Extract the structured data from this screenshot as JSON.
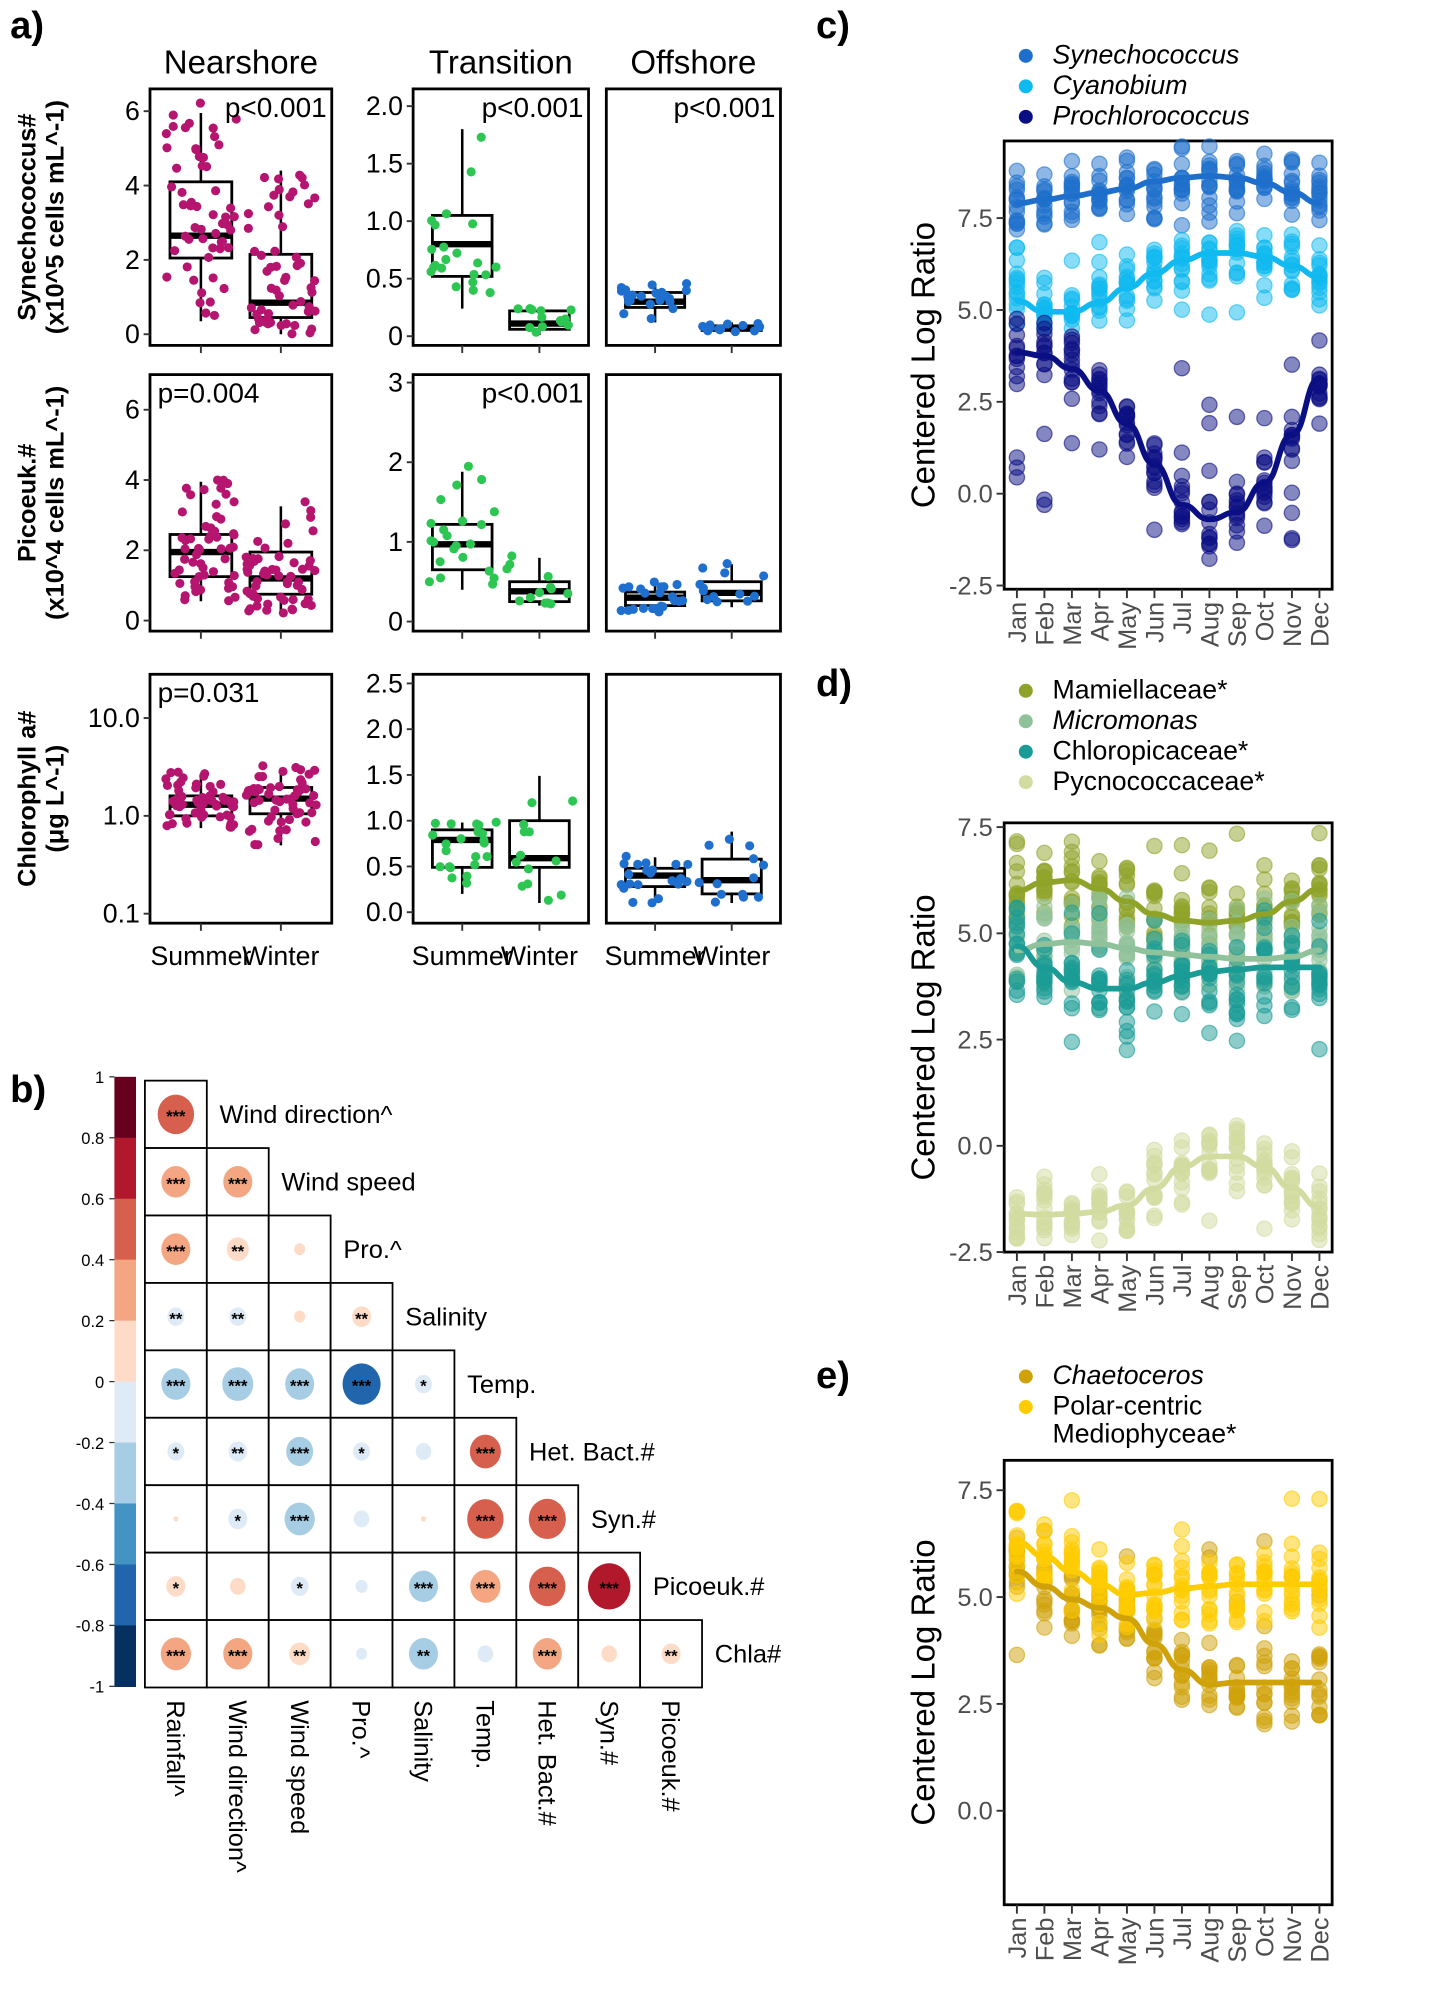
{
  "figure": {
    "panel_labels": [
      "a)",
      "b)",
      "c)",
      "d)",
      "e)"
    ]
  },
  "chart_data": [
    {
      "id": "a",
      "type": "box",
      "facets": [
        "Nearshore",
        "Transition",
        "Offshore"
      ],
      "categories": [
        "Summer",
        "Winter"
      ],
      "colors": {
        "Nearshore": "#b5146f",
        "Transition": "#2dc653",
        "Offshore": "#1f6fcf"
      },
      "rows": [
        {
          "ylabel_main": "Synechococcus#",
          "ylabel_unit": "(x10^5 cells mL^-1)",
          "panels": [
            {
              "facet": "Nearshore",
              "ylim": [
                -0.3,
                6.6
              ],
              "ticks": [
                0,
                2,
                4,
                6
              ],
              "tick_labels": [
                "0",
                "2",
                "4",
                "6"
              ],
              "pvalue": "p<0.001",
              "p_pos": "top-right",
              "boxes": [
                {
                  "q1": 2.05,
                  "median": 2.65,
                  "q3": 4.1,
                  "lo": 0.35,
                  "hi": 5.95
                },
                {
                  "q1": 0.45,
                  "median": 0.85,
                  "q3": 2.15,
                  "lo": 0.0,
                  "hi": 4.4
                }
              ]
            },
            {
              "facet": "Transition",
              "ylim": [
                -0.08,
                2.15
              ],
              "ticks": [
                0,
                0.5,
                1.0,
                1.5,
                2.0
              ],
              "tick_labels": [
                "0",
                "0.5",
                "1.0",
                "1.5",
                "2.0"
              ],
              "pvalue": "p<0.001",
              "p_pos": "top-right",
              "boxes": [
                {
                  "q1": 0.52,
                  "median": 0.8,
                  "q3": 1.05,
                  "lo": 0.24,
                  "hi": 1.8
                },
                {
                  "q1": 0.06,
                  "median": 0.11,
                  "q3": 0.22,
                  "lo": 0.01,
                  "hi": 0.24
                }
              ]
            },
            {
              "facet": "Offshore",
              "ylim": [
                -0.08,
                2.15
              ],
              "ticks": [],
              "tick_labels": [],
              "pvalue": "p<0.001",
              "p_pos": "top-right",
              "boxes": [
                {
                  "q1": 0.25,
                  "median": 0.3,
                  "q3": 0.38,
                  "lo": 0.12,
                  "hi": 0.45
                },
                {
                  "q1": 0.05,
                  "median": 0.07,
                  "q3": 0.09,
                  "lo": 0.03,
                  "hi": 0.12
                }
              ]
            }
          ]
        },
        {
          "ylabel_main": "Picoeuk.#",
          "ylabel_unit": "(x10^4 cells mL^-1)",
          "panels": [
            {
              "facet": "Nearshore",
              "ylim": [
                -0.3,
                7.0
              ],
              "ticks": [
                0,
                2,
                4,
                6
              ],
              "tick_labels": [
                "0",
                "2",
                "4",
                "6"
              ],
              "pvalue": "p=0.004",
              "p_pos": "top-left",
              "boxes": [
                {
                  "q1": 1.25,
                  "median": 1.95,
                  "q3": 2.45,
                  "lo": 0.55,
                  "hi": 3.95
                },
                {
                  "q1": 0.75,
                  "median": 1.2,
                  "q3": 1.95,
                  "lo": 0.2,
                  "hi": 3.25
                }
              ]
            },
            {
              "facet": "Transition",
              "ylim": [
                -0.12,
                3.1
              ],
              "ticks": [
                0,
                1,
                2,
                3
              ],
              "tick_labels": [
                "0",
                "1",
                "2",
                "3"
              ],
              "pvalue": "p<0.001",
              "p_pos": "top-right",
              "boxes": [
                {
                  "q1": 0.65,
                  "median": 0.97,
                  "q3": 1.22,
                  "lo": 0.4,
                  "hi": 1.88
                },
                {
                  "q1": 0.25,
                  "median": 0.38,
                  "q3": 0.5,
                  "lo": 0.2,
                  "hi": 0.8
                }
              ]
            },
            {
              "facet": "Offshore",
              "ylim": [
                -0.12,
                3.1
              ],
              "ticks": [],
              "tick_labels": [],
              "pvalue": "",
              "p_pos": "top-right",
              "boxes": [
                {
                  "q1": 0.2,
                  "median": 0.3,
                  "q3": 0.37,
                  "lo": 0.12,
                  "hi": 0.5
                },
                {
                  "q1": 0.26,
                  "median": 0.36,
                  "q3": 0.5,
                  "lo": 0.18,
                  "hi": 0.72
                }
              ]
            }
          ]
        },
        {
          "ylabel_main": "Chlorophyll a#",
          "ylabel_unit": "(μg L^-1)",
          "panels": [
            {
              "facet": "Nearshore",
              "scale": "log10",
              "ylim": [
                0.08,
                28
              ],
              "ticks": [
                0.1,
                1.0,
                10.0
              ],
              "tick_labels": [
                "0.1",
                "1.0",
                "10.0"
              ],
              "pvalue": "p=0.031",
              "p_pos": "top-left",
              "boxes": [
                {
                  "q1": 1.0,
                  "median": 1.3,
                  "q3": 1.6,
                  "lo": 0.75,
                  "hi": 2.7
                },
                {
                  "q1": 1.05,
                  "median": 1.5,
                  "q3": 1.95,
                  "lo": 0.5,
                  "hi": 3.1
                }
              ]
            },
            {
              "facet": "Transition",
              "ylim": [
                -0.12,
                2.6
              ],
              "ticks": [
                0,
                0.5,
                1.0,
                1.5,
                2.0,
                2.5
              ],
              "tick_labels": [
                "0.0",
                "0.5",
                "1.0",
                "1.5",
                "2.0",
                "2.5"
              ],
              "pvalue": "",
              "p_pos": "top-right",
              "boxes": [
                {
                  "q1": 0.49,
                  "median": 0.79,
                  "q3": 0.9,
                  "lo": 0.2,
                  "hi": 0.98
                },
                {
                  "q1": 0.49,
                  "median": 0.59,
                  "q3": 1.0,
                  "lo": 0.1,
                  "hi": 1.49
                }
              ]
            },
            {
              "facet": "Offshore",
              "ylim": [
                -0.12,
                2.6
              ],
              "ticks": [],
              "tick_labels": [],
              "pvalue": "",
              "p_pos": "top-right",
              "boxes": [
                {
                  "q1": 0.28,
                  "median": 0.4,
                  "q3": 0.48,
                  "lo": 0.1,
                  "hi": 0.6
                },
                {
                  "q1": 0.2,
                  "median": 0.35,
                  "q3": 0.58,
                  "lo": 0.1,
                  "hi": 0.88
                }
              ]
            }
          ]
        }
      ]
    },
    {
      "id": "b",
      "type": "correlogram",
      "variables": [
        "Rainfall^",
        "Wind direction^",
        "Wind speed",
        "Pro.^",
        "Salinity",
        "Temp.",
        "Het. Bact.#",
        "Syn.#",
        "Picoeuk.#",
        "Chla#"
      ],
      "row_labels": [
        "Wind direction^",
        "Wind speed",
        "Pro.^",
        "Salinity",
        "Temp.",
        "Het. Bact.#",
        "Syn.#",
        "Picoeuk.#",
        "Chla#"
      ],
      "col_labels": [
        "Rainfall^",
        "Wind direction^",
        "Wind speed",
        "Pro.^",
        "Salinity",
        "Temp.",
        "Het. Bact.#",
        "Syn.#",
        "Picoeuk.#"
      ],
      "colorbar": {
        "min": -1,
        "max": 1,
        "ticks": [
          "1",
          "0.8",
          "0.6",
          "0.4",
          "0.2",
          "0",
          "-0.2",
          "-0.4",
          "-0.6",
          "-0.8",
          "-1"
        ],
        "colors": [
          "#67001f",
          "#b2182b",
          "#d6604d",
          "#f4a582",
          "#fddbc7",
          "#deebf7",
          "#a6cde3",
          "#4393c3",
          "#2166ac",
          "#053061"
        ]
      },
      "cells": [
        [
          {
            "r": 0.55,
            "sig": "***"
          }
        ],
        [
          {
            "r": 0.35,
            "sig": "***"
          },
          {
            "r": 0.35,
            "sig": "***"
          }
        ],
        [
          {
            "r": 0.35,
            "sig": "***"
          },
          {
            "r": 0.2,
            "sig": "**"
          },
          {
            "r": 0.05,
            "sig": ""
          }
        ],
        [
          {
            "r": -0.12,
            "sig": "**"
          },
          {
            "r": -0.12,
            "sig": "**"
          },
          {
            "r": 0.05,
            "sig": ""
          },
          {
            "r": 0.15,
            "sig": "**"
          }
        ],
        [
          {
            "r": -0.35,
            "sig": "***"
          },
          {
            "r": -0.4,
            "sig": "***"
          },
          {
            "r": -0.35,
            "sig": "***"
          },
          {
            "r": -0.6,
            "sig": "***"
          },
          {
            "r": -0.12,
            "sig": "*"
          }
        ],
        [
          {
            "r": -0.12,
            "sig": "*"
          },
          {
            "r": -0.14,
            "sig": "**"
          },
          {
            "r": -0.3,
            "sig": "***"
          },
          {
            "r": -0.12,
            "sig": "*"
          },
          {
            "r": -0.1,
            "sig": ""
          },
          {
            "r": 0.4,
            "sig": "***"
          }
        ],
        [
          {
            "r": 0.01,
            "sig": ""
          },
          {
            "r": -0.15,
            "sig": "*"
          },
          {
            "r": -0.38,
            "sig": "***"
          },
          {
            "r": -0.1,
            "sig": ""
          },
          {
            "r": 0.01,
            "sig": ""
          },
          {
            "r": 0.55,
            "sig": "***"
          },
          {
            "r": 0.57,
            "sig": "***"
          }
        ],
        [
          {
            "r": 0.15,
            "sig": "*"
          },
          {
            "r": 0.1,
            "sig": ""
          },
          {
            "r": -0.13,
            "sig": "*"
          },
          {
            "r": -0.06,
            "sig": ""
          },
          {
            "r": -0.35,
            "sig": "***"
          },
          {
            "r": 0.38,
            "sig": "***"
          },
          {
            "r": 0.55,
            "sig": "***"
          },
          {
            "r": 0.75,
            "sig": "***"
          }
        ],
        [
          {
            "r": 0.38,
            "sig": "***"
          },
          {
            "r": 0.35,
            "sig": "***"
          },
          {
            "r": 0.18,
            "sig": "**"
          },
          {
            "r": -0.05,
            "sig": ""
          },
          {
            "r": -0.35,
            "sig": "**"
          },
          {
            "r": -0.1,
            "sig": ""
          },
          {
            "r": 0.35,
            "sig": "***"
          },
          {
            "r": 0.1,
            "sig": ""
          },
          {
            "r": 0.15,
            "sig": "**"
          }
        ]
      ]
    },
    {
      "id": "c",
      "type": "scatter+smooth",
      "ylabel": "Centered Log Ratio",
      "x": [
        "Jan",
        "Feb",
        "Mar",
        "Apr",
        "May",
        "Jun",
        "Jul",
        "Aug",
        "Sep",
        "Oct",
        "Nov",
        "Dec"
      ],
      "ylim": [
        -2.6,
        9.6
      ],
      "yticks": [
        -2.5,
        0.0,
        2.5,
        5.0,
        7.5
      ],
      "ytick_labels": [
        "-2.5",
        "0.0",
        "2.5",
        "5.0",
        "7.5"
      ],
      "series": [
        {
          "name": "Synechococcus",
          "italic": true,
          "color": "#1e6fcc",
          "smooth": [
            7.9,
            8.0,
            8.1,
            8.2,
            8.3,
            8.5,
            8.6,
            8.65,
            8.6,
            8.45,
            8.2,
            7.9
          ],
          "spread": [
            7.3,
            9.0
          ]
        },
        {
          "name": "Cyanobium",
          "italic": true,
          "color": "#10b9f0",
          "smooth": [
            5.25,
            4.95,
            4.95,
            5.2,
            5.6,
            6.0,
            6.35,
            6.55,
            6.55,
            6.45,
            6.2,
            5.9
          ],
          "spread": [
            4.6,
            7.2
          ]
        },
        {
          "name": "Prochlorococcus",
          "italic": true,
          "color": "#0b0f84",
          "smooth": [
            3.85,
            3.75,
            3.4,
            2.8,
            1.9,
            0.8,
            -0.3,
            -0.7,
            -0.5,
            0.3,
            1.6,
            3.15
          ],
          "spread": [
            -2.0,
            4.2
          ]
        }
      ]
    },
    {
      "id": "d",
      "type": "scatter+smooth",
      "ylabel": "Centered Log Ratio",
      "x": [
        "Jan",
        "Feb",
        "Mar",
        "Apr",
        "May",
        "Jun",
        "Jul",
        "Aug",
        "Sep",
        "Oct",
        "Nov",
        "Dec"
      ],
      "ylim": [
        -2.5,
        7.6
      ],
      "yticks": [
        -2.5,
        0.0,
        2.5,
        5.0,
        7.5
      ],
      "ytick_labels": [
        "-2.5",
        "0.0",
        "2.5",
        "5.0",
        "7.5"
      ],
      "series": [
        {
          "name": "Mamiellaceae*",
          "italic": false,
          "color": "#8fa329",
          "smooth": [
            6.0,
            6.2,
            6.25,
            6.05,
            5.75,
            5.45,
            5.3,
            5.25,
            5.3,
            5.45,
            5.75,
            6.05
          ],
          "spread": [
            4.8,
            7.4
          ]
        },
        {
          "name": "Micromonas",
          "italic": true,
          "color": "#8fc19a",
          "smooth": [
            4.6,
            4.75,
            4.8,
            4.75,
            4.65,
            4.55,
            4.5,
            4.45,
            4.4,
            4.4,
            4.45,
            4.6
          ],
          "spread": [
            3.5,
            6.0
          ]
        },
        {
          "name": "Chloropicaceae*",
          "italic": false,
          "color": "#1a9b96",
          "smooth": [
            4.7,
            4.2,
            3.85,
            3.7,
            3.7,
            3.85,
            4.0,
            4.1,
            4.15,
            4.2,
            4.2,
            4.2
          ],
          "spread": [
            2.2,
            5.8
          ]
        },
        {
          "name": "Pycnococcaceae*",
          "italic": false,
          "color": "#d2dba0",
          "smooth": [
            -1.6,
            -1.62,
            -1.6,
            -1.55,
            -1.4,
            -1.0,
            -0.5,
            -0.25,
            -0.25,
            -0.5,
            -1.0,
            -1.45
          ],
          "spread": [
            -2.0,
            -1.0
          ]
        }
      ]
    },
    {
      "id": "e",
      "type": "scatter+smooth",
      "ylabel": "Centered Log Ratio",
      "x": [
        "Jan",
        "Feb",
        "Mar",
        "Apr",
        "May",
        "Jun",
        "Jul",
        "Aug",
        "Sep",
        "Oct",
        "Nov",
        "Dec"
      ],
      "ylim": [
        -2.2,
        8.2
      ],
      "yticks": [
        0.0,
        2.5,
        5.0,
        7.5
      ],
      "ytick_labels": [
        "0.0",
        "2.5",
        "5.0",
        "7.5"
      ],
      "series": [
        {
          "name": "Chaetoceros",
          "italic": true,
          "color": "#d0a20a",
          "smooth": [
            5.6,
            5.25,
            4.95,
            4.75,
            4.5,
            3.9,
            3.3,
            2.95,
            3.0,
            3.0,
            3.0,
            3.0
          ],
          "spread": [
            2.6,
            6.6
          ]
        },
        {
          "name": "Polar-centric Mediophyceae*",
          "name_lines": [
            "Polar-centric",
            "Mediophyceae*"
          ],
          "italic": false,
          "color": "#ffcc00",
          "smooth": [
            6.3,
            5.95,
            5.6,
            5.3,
            5.05,
            5.1,
            5.2,
            5.25,
            5.3,
            5.3,
            5.3,
            5.3
          ],
          "spread": [
            4.0,
            7.6
          ]
        }
      ]
    }
  ]
}
